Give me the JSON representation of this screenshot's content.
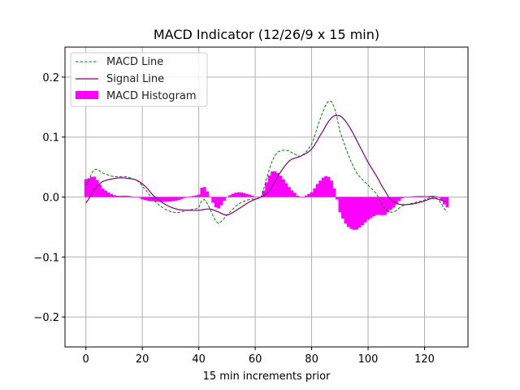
{
  "chart_data": {
    "type": "line",
    "title": "MACD Indicator (12/26/9 x 15 min)",
    "xlabel": "15 min increments prior",
    "ylabel": "",
    "xlim": [
      -7.4,
      135.4
    ],
    "ylim": [
      -0.25,
      0.25
    ],
    "xticks": [
      0,
      20,
      40,
      60,
      80,
      100,
      120
    ],
    "yticks": [
      -0.2,
      -0.1,
      0.0,
      0.1,
      0.2
    ],
    "xtick_labels": [
      "0",
      "20",
      "40",
      "60",
      "80",
      "100",
      "120"
    ],
    "ytick_labels": [
      "−0.2",
      "−0.1",
      "0.0",
      "0.1",
      "0.2"
    ],
    "grid": true,
    "legend_position": "top-left",
    "legend": [
      "MACD Line",
      "Signal Line",
      "MACD Histogram"
    ],
    "colors": {
      "macd": "#008000",
      "signal": "#800080",
      "histogram": "#ff00ff",
      "grid": "#b0b0b0"
    },
    "x_macd_keypoints": [
      0,
      3,
      6,
      10,
      14,
      18,
      20,
      24,
      28,
      32,
      36,
      40,
      41,
      42,
      44,
      46,
      47,
      50,
      54,
      58,
      62,
      64,
      66,
      68,
      71,
      74,
      76,
      80,
      83,
      86,
      88,
      90,
      93,
      96,
      100,
      103,
      106,
      109,
      112,
      116,
      120,
      123,
      125,
      128
    ],
    "macd_keypoints": [
      0.02,
      0.046,
      0.04,
      0.034,
      0.034,
      0.028,
      0.018,
      -0.005,
      -0.02,
      -0.026,
      -0.022,
      -0.018,
      -0.006,
      -0.004,
      -0.02,
      -0.04,
      -0.044,
      -0.03,
      -0.012,
      -0.004,
      0.0,
      0.03,
      0.06,
      0.075,
      0.078,
      0.072,
      0.068,
      0.088,
      0.13,
      0.16,
      0.15,
      0.11,
      0.07,
      0.04,
      0.02,
      0.005,
      -0.02,
      -0.025,
      -0.015,
      -0.01,
      -0.005,
      0.0,
      -0.005,
      -0.025
    ],
    "x_signal_keypoints": [
      0,
      2,
      4,
      6,
      9,
      12,
      15,
      18,
      21,
      24,
      28,
      32,
      36,
      40,
      44,
      47,
      50,
      54,
      58,
      62,
      65,
      68,
      72,
      76,
      80,
      84,
      87,
      89,
      91,
      94,
      97,
      100,
      103,
      106,
      108,
      111,
      115,
      119,
      123,
      125,
      128
    ],
    "signal_keypoints": [
      -0.01,
      0.005,
      0.018,
      0.026,
      0.03,
      0.032,
      0.031,
      0.028,
      0.018,
      0.002,
      -0.012,
      -0.02,
      -0.022,
      -0.022,
      -0.02,
      -0.025,
      -0.03,
      -0.02,
      -0.008,
      0.0,
      0.01,
      0.035,
      0.06,
      0.068,
      0.08,
      0.11,
      0.132,
      0.136,
      0.132,
      0.112,
      0.085,
      0.058,
      0.035,
      0.01,
      -0.004,
      -0.012,
      -0.012,
      -0.008,
      -0.002,
      -0.004,
      -0.008
    ],
    "x_range": [
      0,
      128
    ],
    "series": [
      {
        "name": "MACD Line",
        "style": "dashed"
      },
      {
        "name": "Signal Line",
        "style": "solid"
      },
      {
        "name": "MACD Histogram",
        "style": "bar",
        "definition": "MACD Line - Signal Line"
      }
    ]
  }
}
